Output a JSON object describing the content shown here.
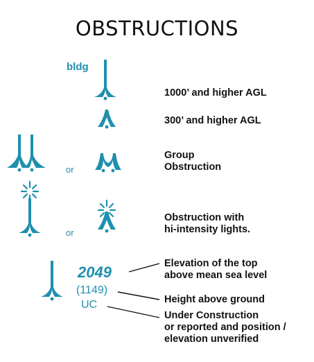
{
  "title": "OBSTRUCTIONS",
  "colors": {
    "symbol": "#1f8fae",
    "text": "#111111"
  },
  "rows": [
    {
      "symbol_label": "bldg",
      "description": "1000’ and higher AGL",
      "icon": "tall-obstruction-icon"
    },
    {
      "description": "300’ and higher AGL",
      "icon": "obstruction-icon"
    },
    {
      "separator": "or",
      "description_line1": "Group",
      "description_line2": "Obstruction",
      "icon": "group-obstruction-icon"
    },
    {
      "separator": "or",
      "description_line1": "Obstruction with",
      "description_line2": "hi-intensity lights.",
      "icon": "lighted-obstruction-icon"
    }
  ],
  "example": {
    "msl_elevation": "2049",
    "agl_height": "(1149)",
    "uc": "UC",
    "notes": {
      "msl_line1": "Elevation of the top",
      "msl_line2": "above mean sea level",
      "agl": "Height above ground",
      "uc_line1": "Under Construction",
      "uc_line2": "or reported and position /",
      "uc_line3": "elevation unverified"
    }
  }
}
